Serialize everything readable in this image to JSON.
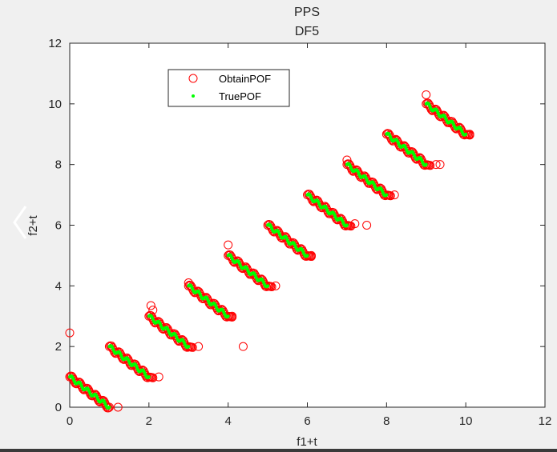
{
  "chart_data": {
    "type": "scatter",
    "title": "PPS",
    "subtitle": "DF5",
    "xlabel": "f1+t",
    "ylabel": "f2+t",
    "xlim": [
      0,
      12
    ],
    "ylim": [
      0,
      12
    ],
    "xticks": [
      "0",
      "2",
      "4",
      "6",
      "8",
      "10",
      "12"
    ],
    "yticks": [
      "0",
      "2",
      "4",
      "6",
      "8",
      "10",
      "12"
    ],
    "grid": false,
    "legend_position": "top-left",
    "series": [
      {
        "name": "ObtainPOF",
        "marker": "open-circle",
        "color": "#ff0000",
        "fronts": [
          {
            "t": 0,
            "x_start": 0.0,
            "x_end": 1.0
          },
          {
            "t": 1,
            "x_start": 1.0,
            "x_end": 2.1
          },
          {
            "t": 2,
            "x_start": 2.0,
            "x_end": 3.1
          },
          {
            "t": 3,
            "x_start": 3.0,
            "x_end": 4.1
          },
          {
            "t": 4,
            "x_start": 4.0,
            "x_end": 5.1
          },
          {
            "t": 5,
            "x_start": 5.0,
            "x_end": 6.1
          },
          {
            "t": 6,
            "x_start": 6.0,
            "x_end": 7.1
          },
          {
            "t": 7,
            "x_start": 7.0,
            "x_end": 8.1
          },
          {
            "t": 8,
            "x_start": 8.0,
            "x_end": 9.1
          },
          {
            "t": 9,
            "x_start": 9.0,
            "x_end": 10.1
          }
        ],
        "extra_points": [
          {
            "x": 0.0,
            "y": 2.45
          },
          {
            "x": 1.22,
            "y": 0.0
          },
          {
            "x": 2.05,
            "y": 3.35
          },
          {
            "x": 2.1,
            "y": 3.2
          },
          {
            "x": 2.25,
            "y": 1.0
          },
          {
            "x": 3.0,
            "y": 4.1
          },
          {
            "x": 3.25,
            "y": 2.0
          },
          {
            "x": 4.0,
            "y": 5.35
          },
          {
            "x": 4.1,
            "y": 3.0
          },
          {
            "x": 4.38,
            "y": 2.0
          },
          {
            "x": 5.2,
            "y": 4.0
          },
          {
            "x": 6.1,
            "y": 5.0
          },
          {
            "x": 7.0,
            "y": 8.15
          },
          {
            "x": 7.2,
            "y": 6.05
          },
          {
            "x": 7.5,
            "y": 6.0
          },
          {
            "x": 8.2,
            "y": 7.0
          },
          {
            "x": 9.0,
            "y": 10.3
          },
          {
            "x": 9.25,
            "y": 8.0
          },
          {
            "x": 9.35,
            "y": 8.0
          },
          {
            "x": 10.1,
            "y": 9.0
          }
        ]
      },
      {
        "name": "TruePOF",
        "marker": "dot",
        "color": "#00ff00",
        "fronts": [
          {
            "t": 0,
            "x_start": 0.0,
            "x_end": 1.0
          },
          {
            "t": 1,
            "x_start": 1.0,
            "x_end": 2.0
          },
          {
            "t": 2,
            "x_start": 2.0,
            "x_end": 3.0
          },
          {
            "t": 3,
            "x_start": 3.0,
            "x_end": 4.0
          },
          {
            "t": 4,
            "x_start": 4.0,
            "x_end": 5.0
          },
          {
            "t": 5,
            "x_start": 5.0,
            "x_end": 6.0
          },
          {
            "t": 6,
            "x_start": 6.0,
            "x_end": 7.0
          },
          {
            "t": 7,
            "x_start": 7.0,
            "x_end": 8.0
          },
          {
            "t": 8,
            "x_start": 8.0,
            "x_end": 9.0
          },
          {
            "t": 9,
            "x_start": 9.0,
            "x_end": 10.0
          }
        ]
      }
    ]
  }
}
